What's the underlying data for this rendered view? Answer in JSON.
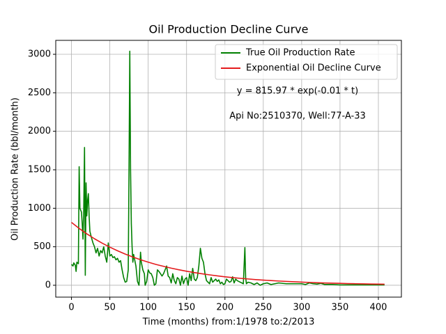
{
  "chart_data": {
    "type": "line",
    "title": "Oil Production Decline Curve",
    "xlabel": "Time (months) from:1/1978 to:2/2013",
    "ylabel": "Oil Production Rate (bbl/month)",
    "annotations": [
      "y = 815.97 * exp(-0.01 * t)",
      "Api No:2510370, Well:77-A-33"
    ],
    "xlim": [
      -20.5,
      430
    ],
    "ylim": [
      -154,
      3181
    ],
    "xticks": [
      0,
      50,
      100,
      150,
      200,
      250,
      300,
      350,
      400
    ],
    "yticks": [
      0,
      500,
      1000,
      1500,
      2000,
      2500,
      3000
    ],
    "grid": true,
    "legend": "upper right",
    "series": [
      {
        "name": "True Oil Production Rate",
        "color": "#008000",
        "x": [
          0,
          2,
          3,
          5,
          6,
          7,
          9,
          10,
          11,
          13,
          14,
          15,
          16,
          17,
          18,
          19,
          20,
          21,
          22,
          23,
          24,
          26,
          28,
          30,
          32,
          34,
          36,
          38,
          40,
          42,
          44,
          46,
          48,
          50,
          52,
          54,
          56,
          58,
          60,
          62,
          64,
          66,
          68,
          70,
          72,
          74,
          75,
          76,
          77,
          78,
          79,
          80,
          81,
          82,
          84,
          86,
          88,
          90,
          91,
          93,
          95,
          96,
          98,
          100,
          102,
          104,
          106,
          108,
          110,
          112,
          114,
          116,
          118,
          120,
          122,
          124,
          126,
          128,
          130,
          132,
          134,
          136,
          138,
          140,
          142,
          144,
          146,
          148,
          150,
          152,
          154,
          156,
          158,
          160,
          162,
          164,
          166,
          168,
          170,
          172,
          174,
          176,
          178,
          180,
          182,
          184,
          186,
          188,
          190,
          192,
          194,
          196,
          198,
          200,
          202,
          204,
          206,
          208,
          210,
          212,
          214,
          216,
          218,
          220,
          222,
          224,
          226,
          227,
          228,
          230,
          234,
          238,
          242,
          246,
          250,
          255,
          260,
          265,
          270,
          280,
          290,
          300,
          305,
          310,
          315,
          320,
          325,
          330,
          340,
          350,
          360,
          370,
          380,
          390,
          400,
          408
        ],
        "values": [
          270,
          250,
          290,
          260,
          180,
          300,
          280,
          1540,
          1000,
          950,
          800,
          600,
          1000,
          1790,
          130,
          1330,
          900,
          1100,
          1190,
          900,
          700,
          620,
          550,
          500,
          420,
          480,
          380,
          450,
          420,
          500,
          380,
          300,
          550,
          380,
          400,
          360,
          370,
          330,
          350,
          300,
          320,
          200,
          100,
          40,
          50,
          200,
          1500,
          3040,
          1500,
          800,
          500,
          300,
          400,
          350,
          250,
          50,
          0,
          430,
          300,
          200,
          150,
          0,
          50,
          200,
          160,
          150,
          100,
          0,
          20,
          200,
          180,
          150,
          120,
          150,
          200,
          250,
          120,
          100,
          30,
          150,
          60,
          20,
          100,
          80,
          0,
          120,
          20,
          80,
          100,
          0,
          150,
          60,
          220,
          80,
          60,
          100,
          250,
          480,
          350,
          300,
          150,
          60,
          40,
          20,
          100,
          40,
          60,
          80,
          50,
          70,
          20,
          40,
          10,
          20,
          80,
          60,
          40,
          50,
          110,
          30,
          80,
          60,
          50,
          40,
          30,
          20,
          490,
          100,
          20,
          40,
          30,
          10,
          30,
          0,
          20,
          30,
          10,
          20,
          30,
          20,
          20,
          20,
          10,
          30,
          20,
          15,
          25,
          10,
          10,
          5,
          5,
          5,
          5,
          5,
          5,
          5
        ]
      },
      {
        "name": "Exponential Oil Decline Curve",
        "color": "#e41a1c",
        "x": [
          0,
          10,
          20,
          30,
          40,
          50,
          60,
          70,
          80,
          90,
          100,
          110,
          120,
          130,
          140,
          150,
          160,
          170,
          180,
          190,
          200,
          210,
          220,
          230,
          240,
          250,
          260,
          270,
          280,
          290,
          300,
          310,
          320,
          330,
          340,
          350,
          360,
          370,
          380,
          390,
          400,
          408
        ],
        "values": [
          816,
          738,
          668,
          604,
          547,
          495,
          448,
          405,
          367,
          332,
          300,
          271,
          246,
          222,
          201,
          182,
          165,
          149,
          135,
          122,
          110,
          100,
          90,
          82,
          74,
          67,
          61,
          55,
          50,
          45,
          41,
          37,
          33,
          30,
          27,
          25,
          22,
          20,
          18,
          16,
          15,
          14
        ]
      }
    ]
  }
}
